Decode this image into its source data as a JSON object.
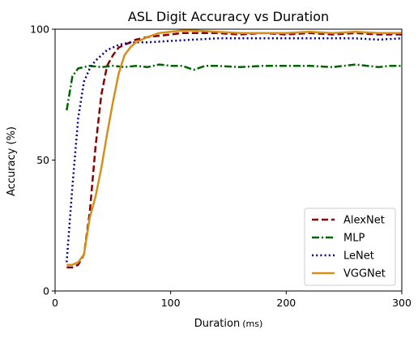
{
  "chart_data": {
    "type": "line",
    "title": "ASL Digit Accuracy vs Duration",
    "xlabel": "Duration",
    "xlabel_unit": "(ms)",
    "ylabel": "Accuracy (%)",
    "xlim": [
      0,
      300
    ],
    "ylim": [
      0,
      100
    ],
    "xticks": [
      0,
      100,
      200,
      300
    ],
    "yticks": [
      0,
      50,
      100
    ],
    "xtick_labels": [
      "0",
      "100",
      "200",
      "300"
    ],
    "ytick_labels": [
      "0",
      "50",
      "100"
    ],
    "grid": false,
    "legend_position": "bottom-right",
    "series": [
      {
        "name": "AlexNet",
        "color": "#8b0000",
        "dash": "dashed",
        "x": [
          10,
          15,
          20,
          25,
          30,
          35,
          40,
          45,
          50,
          55,
          60,
          65,
          70,
          80,
          90,
          100,
          110,
          120,
          140,
          160,
          180,
          200,
          220,
          240,
          260,
          280,
          300
        ],
        "y": [
          9,
          9,
          10,
          14,
          30,
          55,
          75,
          86,
          90,
          93,
          94,
          95,
          96,
          97,
          97.5,
          98,
          98.5,
          98.5,
          98.5,
          98,
          98.5,
          98,
          98.5,
          98,
          98.5,
          98,
          98
        ]
      },
      {
        "name": "MLP",
        "color": "#006400",
        "dash": "dashdot",
        "x": [
          10,
          15,
          20,
          25,
          30,
          40,
          50,
          60,
          70,
          80,
          90,
          100,
          110,
          120,
          130,
          140,
          160,
          180,
          200,
          220,
          240,
          260,
          280,
          290,
          300
        ],
        "y": [
          69,
          82,
          85,
          85.5,
          86,
          85.5,
          86,
          85.5,
          86,
          85.5,
          86.5,
          86,
          86,
          84.5,
          86,
          86,
          85.5,
          86,
          86,
          86,
          85.5,
          86.5,
          85.5,
          86,
          86
        ]
      },
      {
        "name": "LeNet",
        "color": "#00008b",
        "dash": "dotted",
        "x": [
          10,
          15,
          20,
          25,
          30,
          35,
          40,
          45,
          50,
          55,
          60,
          70,
          80,
          100,
          120,
          140,
          160,
          180,
          200,
          220,
          240,
          260,
          280,
          300
        ],
        "y": [
          11,
          40,
          66,
          80,
          85,
          88,
          90,
          92,
          93,
          94,
          94.5,
          95,
          95,
          95.5,
          96,
          96.5,
          96.5,
          96.5,
          96.5,
          96.5,
          96.5,
          96.5,
          96,
          96.5
        ]
      },
      {
        "name": "VGGNet",
        "color": "#d4901a",
        "dash": "solid",
        "x": [
          10,
          15,
          20,
          25,
          30,
          35,
          40,
          45,
          50,
          55,
          60,
          65,
          70,
          80,
          90,
          100,
          110,
          120,
          140,
          160,
          180,
          200,
          220,
          240,
          260,
          280,
          300
        ],
        "y": [
          10,
          10,
          11,
          14,
          28,
          36,
          47,
          60,
          72,
          83,
          90,
          93,
          95,
          97,
          98.5,
          99,
          99.5,
          99.5,
          99,
          98.5,
          98.5,
          98.5,
          99,
          98.5,
          99,
          98.5,
          98.5
        ]
      }
    ]
  }
}
